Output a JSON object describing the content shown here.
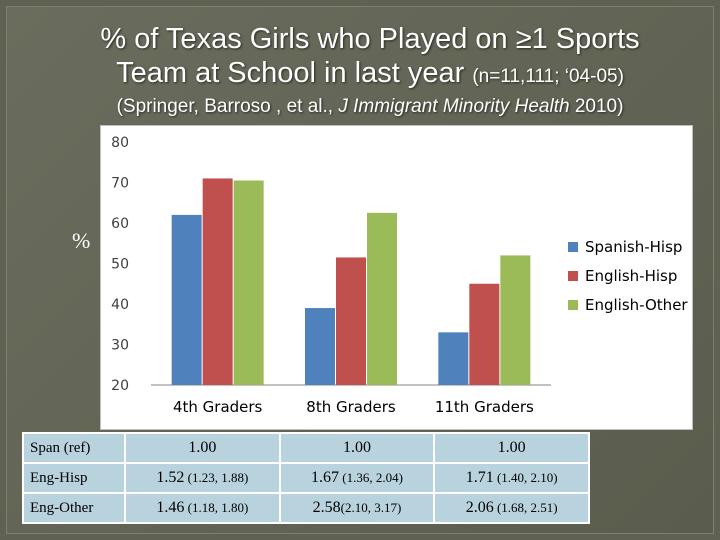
{
  "slide": {
    "title_line1": "% of Texas Girls who Played on ≥1 Sports",
    "title_line2_main": "Team at School in last year ",
    "title_line2_small": "(n=11,111; ‘04-05)",
    "subtitle_plain": "(Springer, Barroso , et al., ",
    "subtitle_italic": "J Immigrant Minority Health",
    "subtitle_end": " 2010)",
    "y_axis_symbol": "%"
  },
  "chart_data": {
    "type": "bar",
    "categories": [
      "4th Graders",
      "8th Graders",
      "11th Graders"
    ],
    "series": [
      {
        "name": "Spanish-Hisp",
        "color": "#4f81bd",
        "values": [
          62,
          39,
          33
        ]
      },
      {
        "name": "English-Hisp",
        "color": "#c0504d",
        "values": [
          71,
          51.5,
          45
        ]
      },
      {
        "name": "English-Other",
        "color": "#9bbb59",
        "values": [
          70.5,
          62.5,
          52
        ]
      }
    ],
    "ylim": [
      20,
      80
    ],
    "yticks": [
      20,
      30,
      40,
      50,
      60,
      70,
      80
    ],
    "legend_position": "right",
    "grid": false
  },
  "table": {
    "rows": [
      {
        "label": "Span (ref)",
        "cells": [
          {
            "est": "1.00",
            "ci": ""
          },
          {
            "est": "1.00",
            "ci": ""
          },
          {
            "est": "1.00",
            "ci": ""
          }
        ]
      },
      {
        "label": "Eng-Hisp",
        "cells": [
          {
            "est": "1.52",
            "ci": " (1.23, 1.88)"
          },
          {
            "est": "1.67",
            "ci": " (1.36, 2.04)"
          },
          {
            "est": "1.71",
            "ci": " (1.40, 2.10)"
          }
        ]
      },
      {
        "label": "Eng-Other",
        "cells": [
          {
            "est": "1.46",
            "ci": " (1.18, 1.80)"
          },
          {
            "est": "2.58",
            "ci": "(2.10, 3.17)"
          },
          {
            "est": "2.06",
            "ci": " (1.68, 2.51)"
          }
        ]
      }
    ]
  }
}
